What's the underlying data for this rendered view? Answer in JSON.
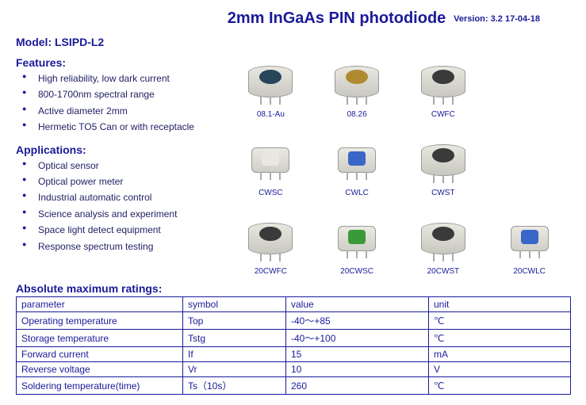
{
  "title": "2mm InGaAs PIN photodiode",
  "version": "Version: 3.2    17-04-18",
  "model": "Model: LSIPD-L2",
  "features_h": "Features:",
  "features": [
    "High reliability, low dark current",
    "800-1700nm spectral range",
    "Active diameter 2mm",
    "Hermetic TO5 Can or with receptacle"
  ],
  "applications_h": "Applications:",
  "applications": [
    "Optical sensor",
    "Optical power meter",
    "Industrial automatic control",
    "Science analysis and experiment",
    "Space light detect equipment",
    "Response spectrum testing"
  ],
  "gallery": {
    "items": [
      {
        "label": "08.1-Au",
        "top_color": "#28455a",
        "shape": "can"
      },
      {
        "label": "08.26",
        "top_color": "#b08a30",
        "shape": "can"
      },
      {
        "label": "CWFC",
        "top_color": "#3a3a3a",
        "shape": "can"
      },
      {
        "label": "",
        "top_color": "",
        "shape": "blank"
      },
      {
        "label": "CWSC",
        "top_color": "#e8e8e0",
        "shape": "sq"
      },
      {
        "label": "CWLC",
        "top_color": "#3a66c8",
        "shape": "sq"
      },
      {
        "label": "CWST",
        "top_color": "#3a3a3a",
        "shape": "can"
      },
      {
        "label": "",
        "top_color": "",
        "shape": "blank"
      },
      {
        "label": "20CWFC",
        "top_color": "#3a3a3a",
        "shape": "can"
      },
      {
        "label": "20CWSC",
        "top_color": "#3a9a3a",
        "shape": "sq"
      },
      {
        "label": "20CWST",
        "top_color": "#3a3a3a",
        "shape": "can"
      },
      {
        "label": "20CWLC",
        "top_color": "#3a66c8",
        "shape": "sq"
      }
    ]
  },
  "ratings_h": "Absolute maximum ratings:",
  "ratings": {
    "columns": [
      "parameter",
      "symbol",
      "value",
      "unit"
    ],
    "rows": [
      [
        "Operating temperature",
        "Top",
        "-40～+85",
        "℃"
      ],
      [
        "Storage temperature",
        "Tstg",
        "-40～+100",
        "℃"
      ],
      [
        "Forward current",
        "If",
        "15",
        "mA"
      ],
      [
        "Reverse voltage",
        "Vr",
        "10",
        "V"
      ],
      [
        "Soldering temperature(time)",
        "Ts（10s）",
        "260",
        "℃"
      ]
    ]
  }
}
